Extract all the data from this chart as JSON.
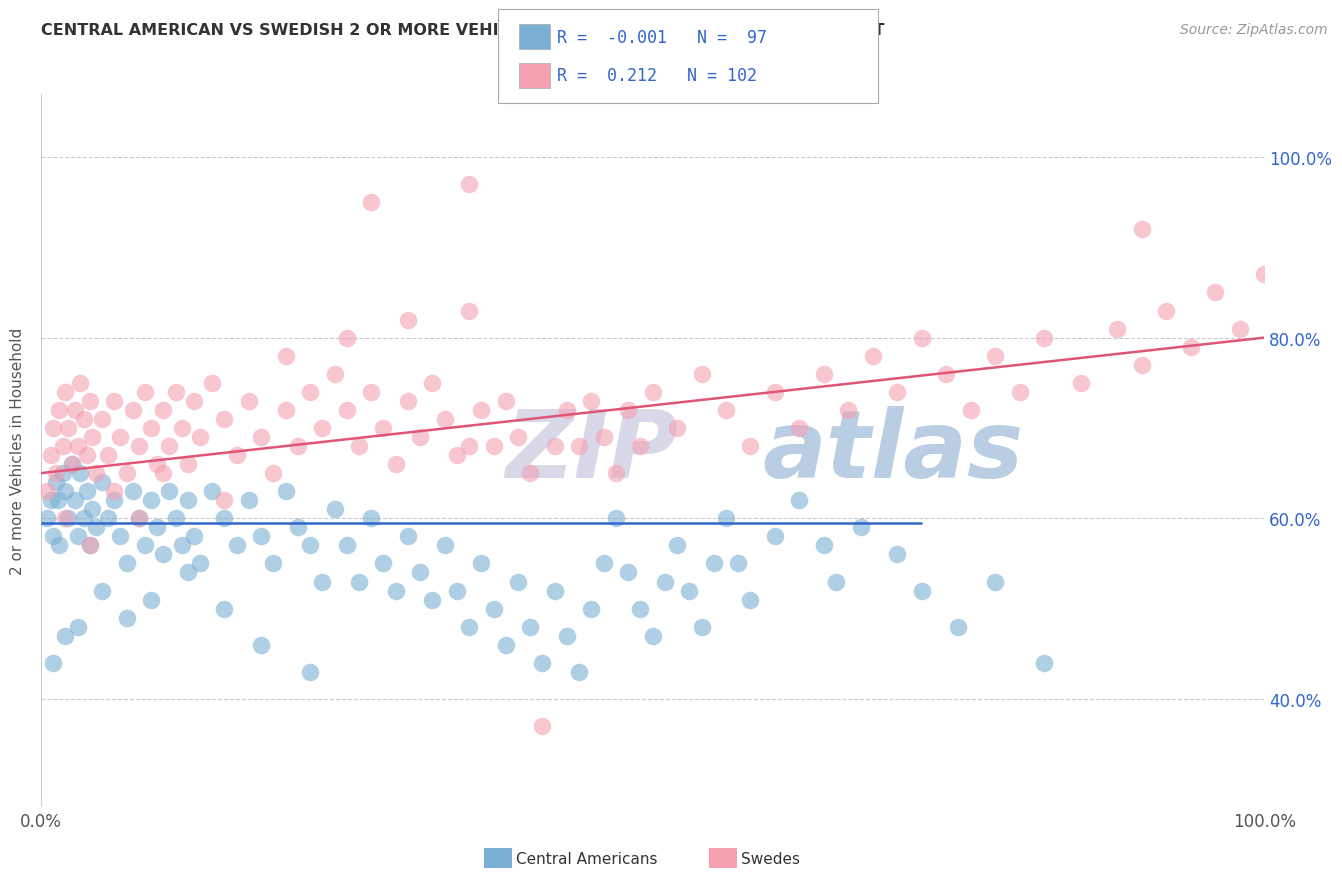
{
  "title": "CENTRAL AMERICAN VS SWEDISH 2 OR MORE VEHICLES IN HOUSEHOLD CORRELATION CHART",
  "source": "Source: ZipAtlas.com",
  "ylabel": "2 or more Vehicles in Household",
  "xmin": 0.0,
  "xmax": 100.0,
  "ymin": 28.0,
  "ymax": 107.0,
  "yticks": [
    40.0,
    60.0,
    80.0,
    100.0
  ],
  "xticks": [
    0.0,
    100.0
  ],
  "xtick_labels": [
    "0.0%",
    "100.0%"
  ],
  "ytick_labels": [
    "40.0%",
    "60.0%",
    "80.0%",
    "100.0%"
  ],
  "blue_color": "#7BAFD4",
  "pink_color": "#F4A0B0",
  "blue_line_color": "#3366CC",
  "pink_line_color": "#E05575",
  "blue_R": -0.001,
  "blue_N": 97,
  "pink_R": 0.212,
  "pink_N": 102,
  "blue_line_x": [
    0.0,
    72.0
  ],
  "blue_line_y": [
    59.5,
    59.5
  ],
  "pink_line_x": [
    0.0,
    100.0
  ],
  "pink_line_y": [
    65.0,
    80.0
  ],
  "watermark_zip": "ZIP",
  "watermark_atlas": "atlas",
  "watermark_zip_color": "#C8C8E0",
  "watermark_atlas_color": "#9CB8D8",
  "legend_color": "#3366CC",
  "blue_scatter": [
    [
      0.5,
      60.0
    ],
    [
      0.8,
      62.0
    ],
    [
      1.0,
      58.0
    ],
    [
      1.2,
      64.0
    ],
    [
      1.4,
      62.0
    ],
    [
      1.5,
      57.0
    ],
    [
      1.8,
      65.0
    ],
    [
      2.0,
      63.0
    ],
    [
      2.2,
      60.0
    ],
    [
      2.5,
      66.0
    ],
    [
      2.8,
      62.0
    ],
    [
      3.0,
      58.0
    ],
    [
      3.2,
      65.0
    ],
    [
      3.5,
      60.0
    ],
    [
      3.8,
      63.0
    ],
    [
      4.0,
      57.0
    ],
    [
      4.2,
      61.0
    ],
    [
      4.5,
      59.0
    ],
    [
      5.0,
      64.0
    ],
    [
      5.5,
      60.0
    ],
    [
      6.0,
      62.0
    ],
    [
      6.5,
      58.0
    ],
    [
      7.0,
      55.0
    ],
    [
      7.5,
      63.0
    ],
    [
      8.0,
      60.0
    ],
    [
      8.5,
      57.0
    ],
    [
      9.0,
      62.0
    ],
    [
      9.5,
      59.0
    ],
    [
      10.0,
      56.0
    ],
    [
      10.5,
      63.0
    ],
    [
      11.0,
      60.0
    ],
    [
      11.5,
      57.0
    ],
    [
      12.0,
      62.0
    ],
    [
      12.5,
      58.0
    ],
    [
      13.0,
      55.0
    ],
    [
      14.0,
      63.0
    ],
    [
      15.0,
      60.0
    ],
    [
      16.0,
      57.0
    ],
    [
      17.0,
      62.0
    ],
    [
      18.0,
      58.0
    ],
    [
      19.0,
      55.0
    ],
    [
      20.0,
      63.0
    ],
    [
      21.0,
      59.0
    ],
    [
      22.0,
      57.0
    ],
    [
      23.0,
      53.0
    ],
    [
      24.0,
      61.0
    ],
    [
      25.0,
      57.0
    ],
    [
      26.0,
      53.0
    ],
    [
      27.0,
      60.0
    ],
    [
      28.0,
      55.0
    ],
    [
      29.0,
      52.0
    ],
    [
      30.0,
      58.0
    ],
    [
      31.0,
      54.0
    ],
    [
      32.0,
      51.0
    ],
    [
      33.0,
      57.0
    ],
    [
      34.0,
      52.0
    ],
    [
      35.0,
      48.0
    ],
    [
      36.0,
      55.0
    ],
    [
      37.0,
      50.0
    ],
    [
      38.0,
      46.0
    ],
    [
      39.0,
      53.0
    ],
    [
      40.0,
      48.0
    ],
    [
      41.0,
      44.0
    ],
    [
      42.0,
      52.0
    ],
    [
      43.0,
      47.0
    ],
    [
      44.0,
      43.0
    ],
    [
      45.0,
      50.0
    ],
    [
      46.0,
      55.0
    ],
    [
      47.0,
      60.0
    ],
    [
      48.0,
      54.0
    ],
    [
      49.0,
      50.0
    ],
    [
      50.0,
      47.0
    ],
    [
      51.0,
      53.0
    ],
    [
      52.0,
      57.0
    ],
    [
      53.0,
      52.0
    ],
    [
      54.0,
      48.0
    ],
    [
      55.0,
      55.0
    ],
    [
      56.0,
      60.0
    ],
    [
      57.0,
      55.0
    ],
    [
      58.0,
      51.0
    ],
    [
      60.0,
      58.0
    ],
    [
      62.0,
      62.0
    ],
    [
      64.0,
      57.0
    ],
    [
      65.0,
      53.0
    ],
    [
      67.0,
      59.0
    ],
    [
      70.0,
      56.0
    ],
    [
      72.0,
      52.0
    ],
    [
      75.0,
      48.0
    ],
    [
      78.0,
      53.0
    ],
    [
      82.0,
      44.0
    ],
    [
      3.0,
      48.0
    ],
    [
      5.0,
      52.0
    ],
    [
      7.0,
      49.0
    ],
    [
      9.0,
      51.0
    ],
    [
      12.0,
      54.0
    ],
    [
      15.0,
      50.0
    ],
    [
      18.0,
      46.0
    ],
    [
      22.0,
      43.0
    ],
    [
      1.0,
      44.0
    ],
    [
      2.0,
      47.0
    ]
  ],
  "pink_scatter": [
    [
      0.5,
      63.0
    ],
    [
      0.8,
      67.0
    ],
    [
      1.0,
      70.0
    ],
    [
      1.2,
      65.0
    ],
    [
      1.5,
      72.0
    ],
    [
      1.8,
      68.0
    ],
    [
      2.0,
      74.0
    ],
    [
      2.2,
      70.0
    ],
    [
      2.5,
      66.0
    ],
    [
      2.8,
      72.0
    ],
    [
      3.0,
      68.0
    ],
    [
      3.2,
      75.0
    ],
    [
      3.5,
      71.0
    ],
    [
      3.8,
      67.0
    ],
    [
      4.0,
      73.0
    ],
    [
      4.2,
      69.0
    ],
    [
      4.5,
      65.0
    ],
    [
      5.0,
      71.0
    ],
    [
      5.5,
      67.0
    ],
    [
      6.0,
      73.0
    ],
    [
      6.5,
      69.0
    ],
    [
      7.0,
      65.0
    ],
    [
      7.5,
      72.0
    ],
    [
      8.0,
      68.0
    ],
    [
      8.5,
      74.0
    ],
    [
      9.0,
      70.0
    ],
    [
      9.5,
      66.0
    ],
    [
      10.0,
      72.0
    ],
    [
      10.5,
      68.0
    ],
    [
      11.0,
      74.0
    ],
    [
      11.5,
      70.0
    ],
    [
      12.0,
      66.0
    ],
    [
      12.5,
      73.0
    ],
    [
      13.0,
      69.0
    ],
    [
      14.0,
      75.0
    ],
    [
      15.0,
      71.0
    ],
    [
      16.0,
      67.0
    ],
    [
      17.0,
      73.0
    ],
    [
      18.0,
      69.0
    ],
    [
      19.0,
      65.0
    ],
    [
      20.0,
      72.0
    ],
    [
      21.0,
      68.0
    ],
    [
      22.0,
      74.0
    ],
    [
      23.0,
      70.0
    ],
    [
      24.0,
      76.0
    ],
    [
      25.0,
      72.0
    ],
    [
      26.0,
      68.0
    ],
    [
      27.0,
      74.0
    ],
    [
      28.0,
      70.0
    ],
    [
      29.0,
      66.0
    ],
    [
      30.0,
      73.0
    ],
    [
      31.0,
      69.0
    ],
    [
      32.0,
      75.0
    ],
    [
      33.0,
      71.0
    ],
    [
      34.0,
      67.0
    ],
    [
      35.0,
      68.0
    ],
    [
      36.0,
      72.0
    ],
    [
      37.0,
      68.0
    ],
    [
      38.0,
      73.0
    ],
    [
      39.0,
      69.0
    ],
    [
      40.0,
      65.0
    ],
    [
      41.0,
      37.0
    ],
    [
      42.0,
      68.0
    ],
    [
      43.0,
      72.0
    ],
    [
      44.0,
      68.0
    ],
    [
      45.0,
      73.0
    ],
    [
      46.0,
      69.0
    ],
    [
      47.0,
      65.0
    ],
    [
      48.0,
      72.0
    ],
    [
      49.0,
      68.0
    ],
    [
      50.0,
      74.0
    ],
    [
      52.0,
      70.0
    ],
    [
      54.0,
      76.0
    ],
    [
      56.0,
      72.0
    ],
    [
      58.0,
      68.0
    ],
    [
      60.0,
      74.0
    ],
    [
      62.0,
      70.0
    ],
    [
      64.0,
      76.0
    ],
    [
      66.0,
      72.0
    ],
    [
      68.0,
      78.0
    ],
    [
      70.0,
      74.0
    ],
    [
      72.0,
      80.0
    ],
    [
      74.0,
      76.0
    ],
    [
      76.0,
      72.0
    ],
    [
      78.0,
      78.0
    ],
    [
      80.0,
      74.0
    ],
    [
      82.0,
      80.0
    ],
    [
      85.0,
      75.0
    ],
    [
      88.0,
      81.0
    ],
    [
      90.0,
      77.0
    ],
    [
      92.0,
      83.0
    ],
    [
      94.0,
      79.0
    ],
    [
      96.0,
      85.0
    ],
    [
      98.0,
      81.0
    ],
    [
      100.0,
      87.0
    ],
    [
      2.0,
      60.0
    ],
    [
      4.0,
      57.0
    ],
    [
      6.0,
      63.0
    ],
    [
      8.0,
      60.0
    ],
    [
      10.0,
      65.0
    ],
    [
      15.0,
      62.0
    ],
    [
      20.0,
      78.0
    ],
    [
      25.0,
      80.0
    ],
    [
      30.0,
      82.0
    ],
    [
      35.0,
      83.0
    ],
    [
      27.0,
      95.0
    ],
    [
      35.0,
      97.0
    ],
    [
      90.0,
      92.0
    ]
  ]
}
